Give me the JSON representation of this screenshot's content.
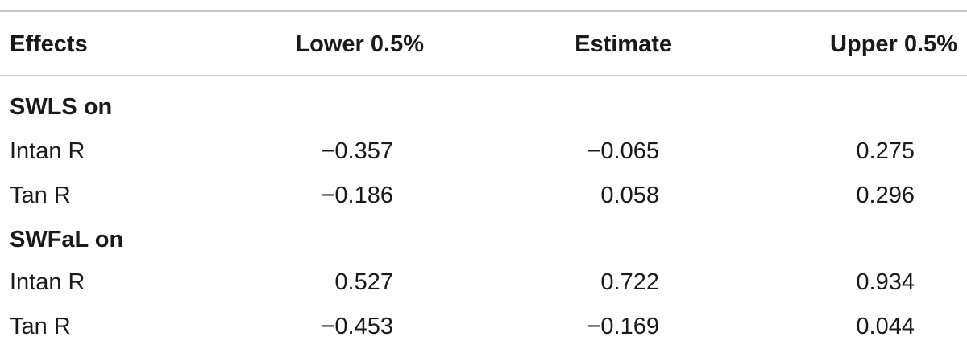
{
  "table": {
    "columns": [
      "Effects",
      "Lower 0.5%",
      "Estimate",
      "Upper 0.5%"
    ],
    "groups": [
      {
        "label": "SWLS on",
        "rows": [
          {
            "effect": "Intan R",
            "lower": "−0.357",
            "estimate": "−0.065",
            "upper": "0.275"
          },
          {
            "effect": "Tan R",
            "lower": "−0.186",
            "estimate": "0.058",
            "upper": "0.296"
          }
        ]
      },
      {
        "label": "SWFaL on",
        "rows": [
          {
            "effect": "Intan R",
            "lower": "0.527",
            "estimate": "0.722",
            "upper": "0.934"
          },
          {
            "effect": "Tan R",
            "lower": "−0.453",
            "estimate": "−0.169",
            "upper": "0.044"
          }
        ]
      }
    ]
  }
}
